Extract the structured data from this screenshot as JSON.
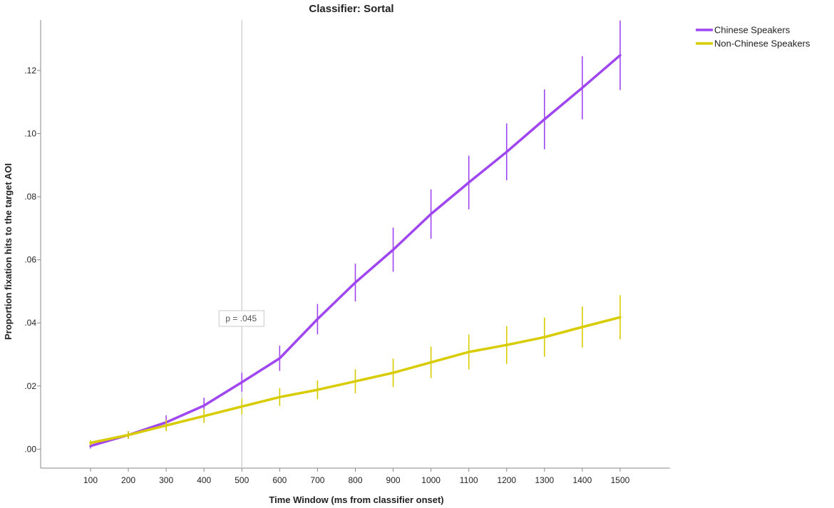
{
  "chart_data": {
    "type": "line",
    "title": "Classifier: Sortal",
    "xlabel": "Time Window (ms from classifier onset)",
    "ylabel": "Proportion fixation hits to the target AOI",
    "categories": [
      "100",
      "200",
      "300",
      "400",
      "500",
      "600",
      "700",
      "800",
      "900",
      "1000",
      "1100",
      "1200",
      "1300",
      "1400",
      "1500"
    ],
    "ylim": [
      -0.006,
      0.136
    ],
    "yticks": [
      0.0,
      0.02,
      0.04,
      0.06,
      0.08,
      0.1,
      0.12
    ],
    "ytick_labels": [
      ".00",
      ".02",
      ".04",
      ".06",
      ".08",
      ".10",
      ".12"
    ],
    "grid": false,
    "legend_position": "top-right",
    "series": [
      {
        "name": "Chinese Speakers",
        "color": "#a046f0",
        "values": [
          0.001,
          0.0045,
          0.0085,
          0.0138,
          0.0212,
          0.0288,
          0.0412,
          0.0528,
          0.0632,
          0.0745,
          0.0845,
          0.0942,
          0.1045,
          0.1145,
          0.1248
        ],
        "error": [
          0.0008,
          0.0012,
          0.0022,
          0.0025,
          0.003,
          0.004,
          0.0048,
          0.006,
          0.007,
          0.0078,
          0.0085,
          0.009,
          0.0095,
          0.01,
          0.011
        ]
      },
      {
        "name": "Non-Chinese Speakers",
        "color": "#d8cc00",
        "values": [
          0.002,
          0.0045,
          0.0075,
          0.0105,
          0.0135,
          0.0165,
          0.0188,
          0.0215,
          0.0242,
          0.0275,
          0.0308,
          0.033,
          0.0355,
          0.0387,
          0.0418
        ],
        "error": [
          0.0008,
          0.0012,
          0.0018,
          0.0022,
          0.0025,
          0.0028,
          0.003,
          0.0038,
          0.0045,
          0.005,
          0.0055,
          0.006,
          0.0062,
          0.0065,
          0.007
        ]
      }
    ],
    "annotations": [
      {
        "text": "p = .045",
        "x": "500"
      }
    ],
    "reference_line_x": "500"
  }
}
